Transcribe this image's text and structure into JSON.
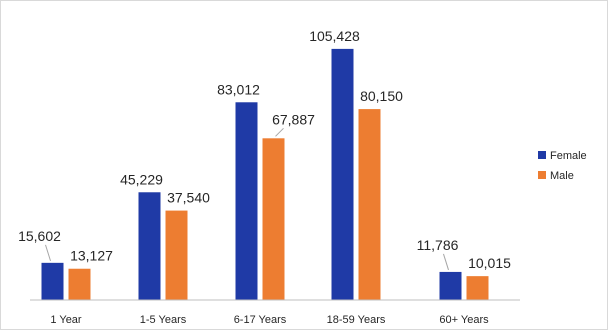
{
  "chart_data": {
    "type": "bar",
    "categories": [
      "1 Year",
      "1-5 Years",
      "6-17 Years",
      "18-59 Years",
      "60+ Years"
    ],
    "series": [
      {
        "name": "Female",
        "color": "#1f3aa6",
        "values": [
          15602,
          45229,
          83012,
          105428,
          11786
        ],
        "labels": [
          "15,602",
          "45,229",
          "83,012",
          "105,428",
          "11,786"
        ]
      },
      {
        "name": "Male",
        "color": "#ed7d31",
        "values": [
          13127,
          37540,
          67887,
          80150,
          10015
        ],
        "labels": [
          "13,127",
          "37,540",
          "67,887",
          "80,150",
          "10,015"
        ]
      }
    ],
    "ylim": [
      0,
      110000
    ],
    "grid": false,
    "legend_position": "right",
    "title": "",
    "xlabel": "",
    "ylabel": ""
  }
}
